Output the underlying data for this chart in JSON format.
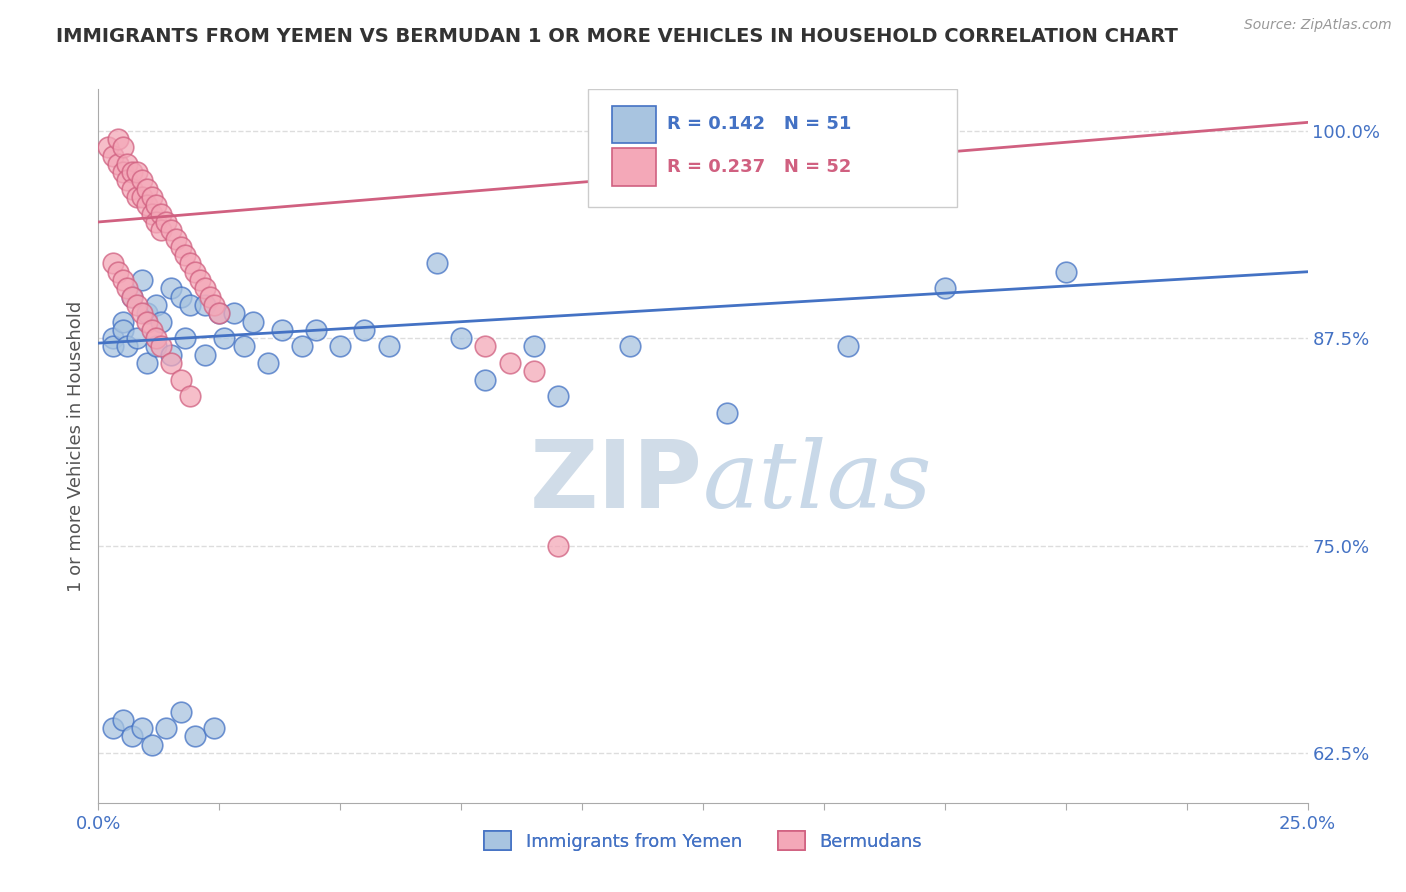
{
  "title": "IMMIGRANTS FROM YEMEN VS BERMUDAN 1 OR MORE VEHICLES IN HOUSEHOLD CORRELATION CHART",
  "source_text": "Source: ZipAtlas.com",
  "ylabel": "1 or more Vehicles in Household",
  "xlim": [
    0.0,
    0.25
  ],
  "ylim": [
    0.595,
    1.025
  ],
  "xticks": [
    0.0,
    0.025,
    0.05,
    0.075,
    0.1,
    0.125,
    0.15,
    0.175,
    0.2,
    0.225,
    0.25
  ],
  "xticklabels": [
    "0.0%",
    "",
    "",
    "",
    "",
    "",
    "",
    "",
    "",
    "",
    "25.0%"
  ],
  "yticks": [
    0.625,
    0.75,
    0.875,
    1.0
  ],
  "yticklabels": [
    "62.5%",
    "75.0%",
    "87.5%",
    "100.0%"
  ],
  "legend_labels": [
    "Immigrants from Yemen",
    "Bermudans"
  ],
  "r_blue": 0.142,
  "n_blue": 51,
  "r_pink": 0.237,
  "n_pink": 52,
  "blue_color": "#a8c4e0",
  "pink_color": "#f4a8b8",
  "blue_line_color": "#4472c4",
  "pink_line_color": "#d06080",
  "blue_trend": [
    0.0,
    0.25,
    0.872,
    0.915
  ],
  "pink_trend": [
    0.0,
    0.25,
    0.945,
    1.005
  ],
  "scatter_blue_x": [
    0.003,
    0.005,
    0.007,
    0.009,
    0.01,
    0.012,
    0.013,
    0.015,
    0.017,
    0.019,
    0.022,
    0.025,
    0.028,
    0.032,
    0.038,
    0.045,
    0.055,
    0.07,
    0.08,
    0.095,
    0.11,
    0.13,
    0.155,
    0.175,
    0.2,
    0.003,
    0.005,
    0.006,
    0.008,
    0.01,
    0.012,
    0.015,
    0.018,
    0.022,
    0.026,
    0.03,
    0.035,
    0.042,
    0.05,
    0.06,
    0.075,
    0.09,
    0.003,
    0.005,
    0.007,
    0.009,
    0.011,
    0.014,
    0.017,
    0.02,
    0.024
  ],
  "scatter_blue_y": [
    0.875,
    0.885,
    0.9,
    0.91,
    0.89,
    0.895,
    0.885,
    0.905,
    0.9,
    0.895,
    0.895,
    0.89,
    0.89,
    0.885,
    0.88,
    0.88,
    0.88,
    0.92,
    0.85,
    0.84,
    0.87,
    0.83,
    0.87,
    0.905,
    0.915,
    0.87,
    0.88,
    0.87,
    0.875,
    0.86,
    0.87,
    0.865,
    0.875,
    0.865,
    0.875,
    0.87,
    0.86,
    0.87,
    0.87,
    0.87,
    0.875,
    0.87,
    0.64,
    0.645,
    0.635,
    0.64,
    0.63,
    0.64,
    0.65,
    0.635,
    0.64
  ],
  "scatter_pink_x": [
    0.002,
    0.003,
    0.004,
    0.004,
    0.005,
    0.005,
    0.006,
    0.006,
    0.007,
    0.007,
    0.008,
    0.008,
    0.009,
    0.009,
    0.01,
    0.01,
    0.011,
    0.011,
    0.012,
    0.012,
    0.013,
    0.013,
    0.014,
    0.015,
    0.016,
    0.017,
    0.018,
    0.019,
    0.02,
    0.021,
    0.022,
    0.023,
    0.024,
    0.025,
    0.003,
    0.004,
    0.005,
    0.006,
    0.007,
    0.008,
    0.009,
    0.01,
    0.011,
    0.012,
    0.013,
    0.015,
    0.017,
    0.019,
    0.08,
    0.085,
    0.09,
    0.095
  ],
  "scatter_pink_y": [
    0.99,
    0.985,
    0.995,
    0.98,
    0.99,
    0.975,
    0.98,
    0.97,
    0.975,
    0.965,
    0.975,
    0.96,
    0.97,
    0.96,
    0.965,
    0.955,
    0.96,
    0.95,
    0.955,
    0.945,
    0.95,
    0.94,
    0.945,
    0.94,
    0.935,
    0.93,
    0.925,
    0.92,
    0.915,
    0.91,
    0.905,
    0.9,
    0.895,
    0.89,
    0.92,
    0.915,
    0.91,
    0.905,
    0.9,
    0.895,
    0.89,
    0.885,
    0.88,
    0.875,
    0.87,
    0.86,
    0.85,
    0.84,
    0.87,
    0.86,
    0.855,
    0.75
  ],
  "background_color": "#ffffff",
  "grid_color": "#dddddd",
  "title_color": "#333333",
  "axis_label_color": "#4472c4",
  "watermark_color": "#d0dce8"
}
